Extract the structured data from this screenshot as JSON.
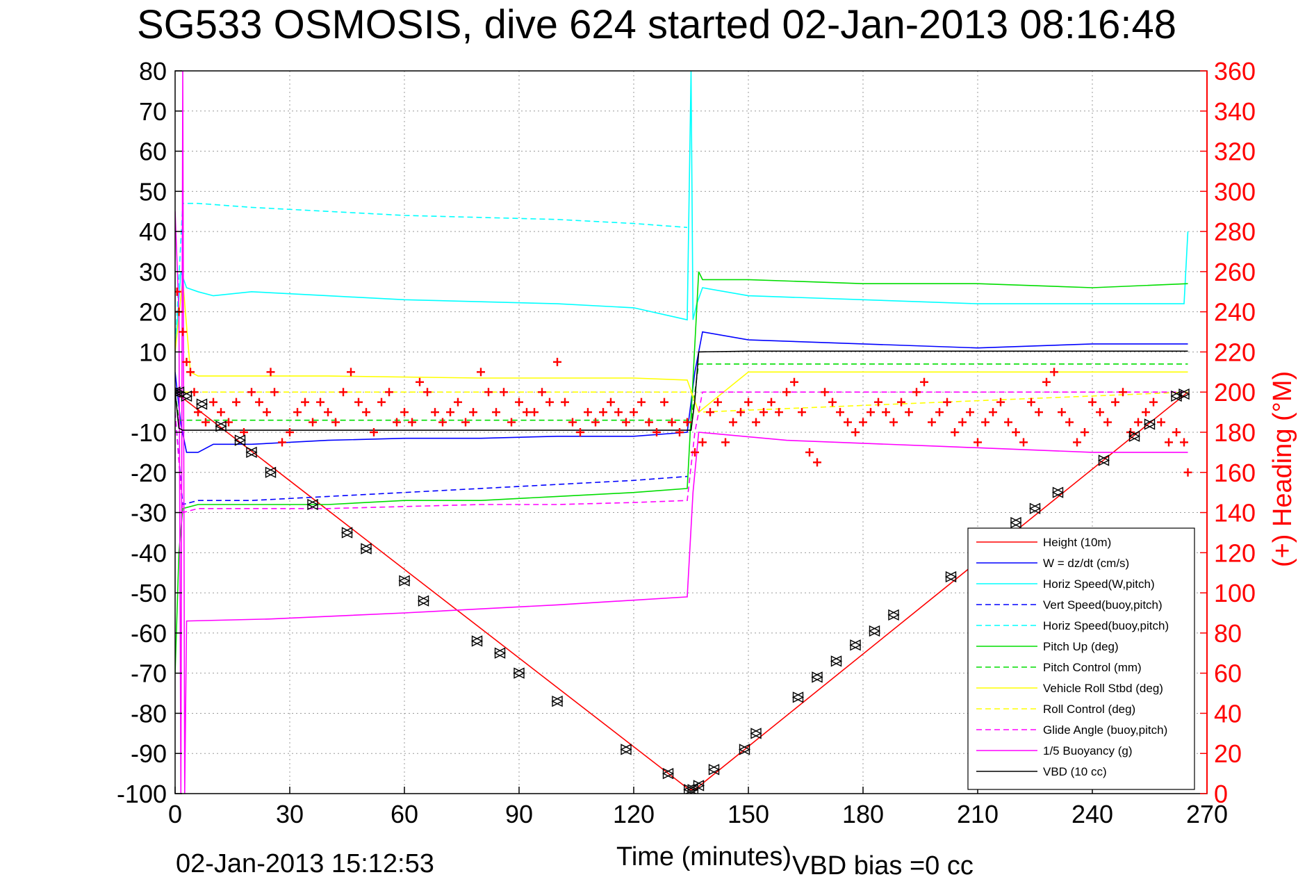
{
  "chart_data": {
    "type": "line",
    "title": "SG533 OSMOSIS, dive 624 started 02-Jan-2013 08:16:48",
    "xlabel": "Time (minutes)",
    "ylabel": "",
    "y2label": "(+) Heading (°M)",
    "xlim": [
      0,
      270
    ],
    "ylim": [
      -100,
      80
    ],
    "y2lim": [
      0,
      360
    ],
    "x_ticks": [
      0,
      30,
      60,
      90,
      120,
      150,
      180,
      210,
      240,
      270
    ],
    "y_ticks": [
      80,
      70,
      60,
      50,
      40,
      30,
      20,
      10,
      0,
      -10,
      -20,
      -30,
      -40,
      -50,
      -60,
      -70,
      -80,
      -90,
      -100
    ],
    "y2_ticks": [
      360,
      340,
      320,
      300,
      280,
      260,
      240,
      220,
      200,
      180,
      160,
      140,
      120,
      100,
      80,
      60,
      40,
      20,
      0
    ],
    "grid": true,
    "legend_position": "bottom-right",
    "footer_left": "02-Jan-2013 15:12:53",
    "footer_right": "VBD bias =0 cc",
    "series": [
      {
        "name": "Height (10m)",
        "color": "#ff0000",
        "style": "solid",
        "x": [
          0,
          134.5,
          136,
          265
        ],
        "y": [
          0,
          -99,
          -99,
          0
        ]
      },
      {
        "name": "W = dz/dt (cm/s)",
        "color": "#0000ff",
        "style": "solid",
        "x": [
          0,
          1.5,
          3,
          6,
          10,
          20,
          40,
          60,
          80,
          100,
          120,
          134,
          136,
          138,
          150,
          180,
          210,
          240,
          265
        ],
        "y": [
          5,
          -8,
          -15,
          -15,
          -13,
          -13,
          -12,
          -11.5,
          -11.5,
          -11,
          -11,
          -10,
          5,
          15,
          13,
          12,
          11,
          12,
          12
        ]
      },
      {
        "name": "Horiz Speed(W,pitch)",
        "color": "#00ffff",
        "style": "solid",
        "x": [
          0,
          1.5,
          3,
          6,
          10,
          20,
          40,
          60,
          80,
          100,
          120,
          134,
          135,
          135.5,
          136.5,
          138,
          150,
          180,
          210,
          240,
          264,
          265
        ],
        "y": [
          10,
          30,
          26,
          25,
          24,
          25,
          24,
          23,
          22.5,
          22,
          21,
          18,
          80,
          18,
          22,
          26,
          24,
          23,
          22,
          22,
          22,
          40
        ]
      },
      {
        "name": "Vert Speed(buoy,pitch)",
        "color": "#0000ff",
        "style": "dashed",
        "x": [
          0,
          2,
          6,
          20,
          40,
          60,
          80,
          100,
          120,
          134
        ],
        "y": [
          -5,
          -28,
          -27,
          -27,
          -26,
          -25,
          -24,
          -23,
          -22,
          -21
        ]
      },
      {
        "name": "Horiz Speed(buoy,pitch)",
        "color": "#00ffff",
        "style": "dashed",
        "x": [
          0,
          2,
          6,
          20,
          40,
          60,
          80,
          100,
          120,
          134
        ],
        "y": [
          10,
          47,
          47,
          46,
          45,
          44,
          43.5,
          43,
          42,
          41
        ]
      },
      {
        "name": "Pitch Up (deg)",
        "color": "#00dd00",
        "style": "solid",
        "x": [
          0,
          1,
          2,
          6,
          20,
          40,
          60,
          80,
          100,
          120,
          134,
          137,
          138,
          150,
          180,
          210,
          240,
          265
        ],
        "y": [
          -70,
          -40,
          -29,
          -28,
          -28,
          -28,
          -27,
          -27,
          -26,
          -25,
          -24,
          30,
          28,
          28,
          27,
          27,
          26,
          27
        ]
      },
      {
        "name": "Pitch Control (mm)",
        "color": "#00dd00",
        "style": "dashed",
        "x": [
          0,
          1,
          3,
          135,
          137,
          265
        ],
        "y": [
          0,
          -7,
          -7,
          -7,
          7,
          7
        ]
      },
      {
        "name": "Vehicle Roll Stbd (deg)",
        "color": "#ffff00",
        "style": "solid",
        "x": [
          0,
          2,
          4,
          6,
          40,
          80,
          120,
          134,
          137,
          150,
          180,
          210,
          240,
          265
        ],
        "y": [
          10,
          28,
          5,
          4,
          4,
          3.5,
          3.5,
          3,
          -5,
          5,
          5,
          5,
          5,
          5
        ]
      },
      {
        "name": "Roll Control (deg)",
        "color": "#ffff00",
        "style": "dashed",
        "x": [
          0,
          2,
          135,
          137,
          265
        ],
        "y": [
          0,
          0,
          0,
          -5,
          0
        ]
      },
      {
        "name": "Glide Angle (buoy,pitch)",
        "color": "#ff00ff",
        "style": "dashed",
        "x": [
          0,
          2,
          6,
          20,
          40,
          60,
          80,
          100,
          120,
          134,
          136,
          138,
          265
        ],
        "y": [
          -5,
          -30,
          -29,
          -29,
          -29,
          -28.5,
          -28,
          -28,
          -27.5,
          -27,
          -10,
          0,
          0
        ]
      },
      {
        "name": "1/5 Buoyancy (g)",
        "color": "#ff00ff",
        "style": "solid",
        "x": [
          0,
          1,
          1.5,
          2,
          2.5,
          3,
          25,
          60,
          100,
          134,
          135.5,
          137,
          160,
          200,
          240,
          265
        ],
        "y": [
          45,
          20,
          -100,
          80,
          -100,
          -57,
          -56.5,
          -55,
          -53,
          -51,
          -25,
          -10,
          -12,
          -13.5,
          -15,
          -15
        ]
      },
      {
        "name": "VBD (10 cc)",
        "color": "#000000",
        "style": "solid",
        "x": [
          0,
          1,
          2,
          135,
          136,
          137,
          150,
          265
        ],
        "y": [
          0,
          -9,
          -9.5,
          -9.5,
          -2,
          10,
          10.2,
          10.2
        ]
      }
    ],
    "heading_series": {
      "name": "(+) Heading",
      "color": "#ff0000",
      "marker": "+",
      "axis": "right",
      "x": [
        0.5,
        1,
        2,
        3,
        4,
        5,
        6,
        8,
        10,
        12,
        14,
        16,
        18,
        20,
        22,
        24,
        25,
        26,
        28,
        30,
        32,
        34,
        36,
        38,
        40,
        42,
        44,
        46,
        48,
        50,
        52,
        54,
        56,
        58,
        60,
        62,
        64,
        66,
        68,
        70,
        72,
        74,
        76,
        78,
        80,
        82,
        84,
        86,
        88,
        90,
        92,
        94,
        96,
        98,
        100,
        102,
        104,
        106,
        108,
        110,
        112,
        114,
        116,
        118,
        120,
        122,
        124,
        126,
        128,
        130,
        132,
        134,
        136,
        138,
        140,
        142,
        144,
        146,
        148,
        150,
        152,
        154,
        156,
        158,
        160,
        162,
        164,
        166,
        168,
        170,
        172,
        174,
        176,
        178,
        180,
        182,
        184,
        186,
        188,
        190,
        192,
        194,
        196,
        198,
        200,
        202,
        204,
        206,
        208,
        210,
        212,
        214,
        216,
        218,
        220,
        222,
        224,
        226,
        228,
        230,
        232,
        234,
        236,
        238,
        240,
        242,
        244,
        246,
        248,
        250,
        252,
        254,
        256,
        258,
        260,
        262,
        264,
        265
      ],
      "y": [
        250,
        240,
        230,
        215,
        210,
        200,
        190,
        185,
        195,
        190,
        185,
        195,
        180,
        200,
        195,
        190,
        210,
        200,
        175,
        180,
        190,
        195,
        185,
        195,
        190,
        185,
        200,
        210,
        195,
        190,
        180,
        195,
        200,
        185,
        190,
        185,
        205,
        200,
        190,
        185,
        190,
        195,
        185,
        190,
        210,
        200,
        190,
        200,
        185,
        195,
        190,
        190,
        200,
        195,
        215,
        195,
        185,
        180,
        190,
        185,
        190,
        195,
        190,
        185,
        190,
        195,
        185,
        180,
        195,
        185,
        180,
        185,
        170,
        175,
        190,
        195,
        175,
        185,
        190,
        195,
        185,
        190,
        195,
        190,
        200,
        205,
        190,
        170,
        165,
        200,
        195,
        190,
        185,
        180,
        185,
        190,
        195,
        190,
        185,
        195,
        190,
        200,
        205,
        185,
        190,
        195,
        180,
        185,
        190,
        175,
        185,
        190,
        195,
        185,
        180,
        175,
        195,
        190,
        205,
        210,
        190,
        185,
        175,
        180,
        195,
        190,
        185,
        195,
        200,
        180,
        185,
        190,
        195,
        185,
        175,
        180,
        175,
        160
      ]
    },
    "nav_markers": {
      "name": "bottom-up/down markers",
      "color": "#000000",
      "x": [
        0,
        1,
        3,
        7,
        12,
        17,
        20,
        25,
        36,
        45,
        50,
        60,
        65,
        79,
        85,
        90,
        100,
        118,
        129,
        134.5,
        135.5,
        137,
        141,
        149,
        152,
        163,
        168,
        173,
        178,
        183,
        188,
        203,
        220,
        225,
        231,
        243,
        251,
        255,
        262,
        264
      ],
      "y": [
        0,
        0,
        -1,
        -3,
        -8.5,
        -12,
        -15,
        -20,
        -28,
        -35,
        -39,
        -47,
        -52,
        -62,
        -65,
        -70,
        -77,
        -89,
        -95,
        -99,
        -99,
        -98,
        -94,
        -89,
        -85,
        -76,
        -71,
        -67,
        -63,
        -59.5,
        -55.5,
        -46,
        -32.5,
        -29,
        -25,
        -17,
        -11,
        -8,
        -1,
        -0.5
      ]
    }
  }
}
